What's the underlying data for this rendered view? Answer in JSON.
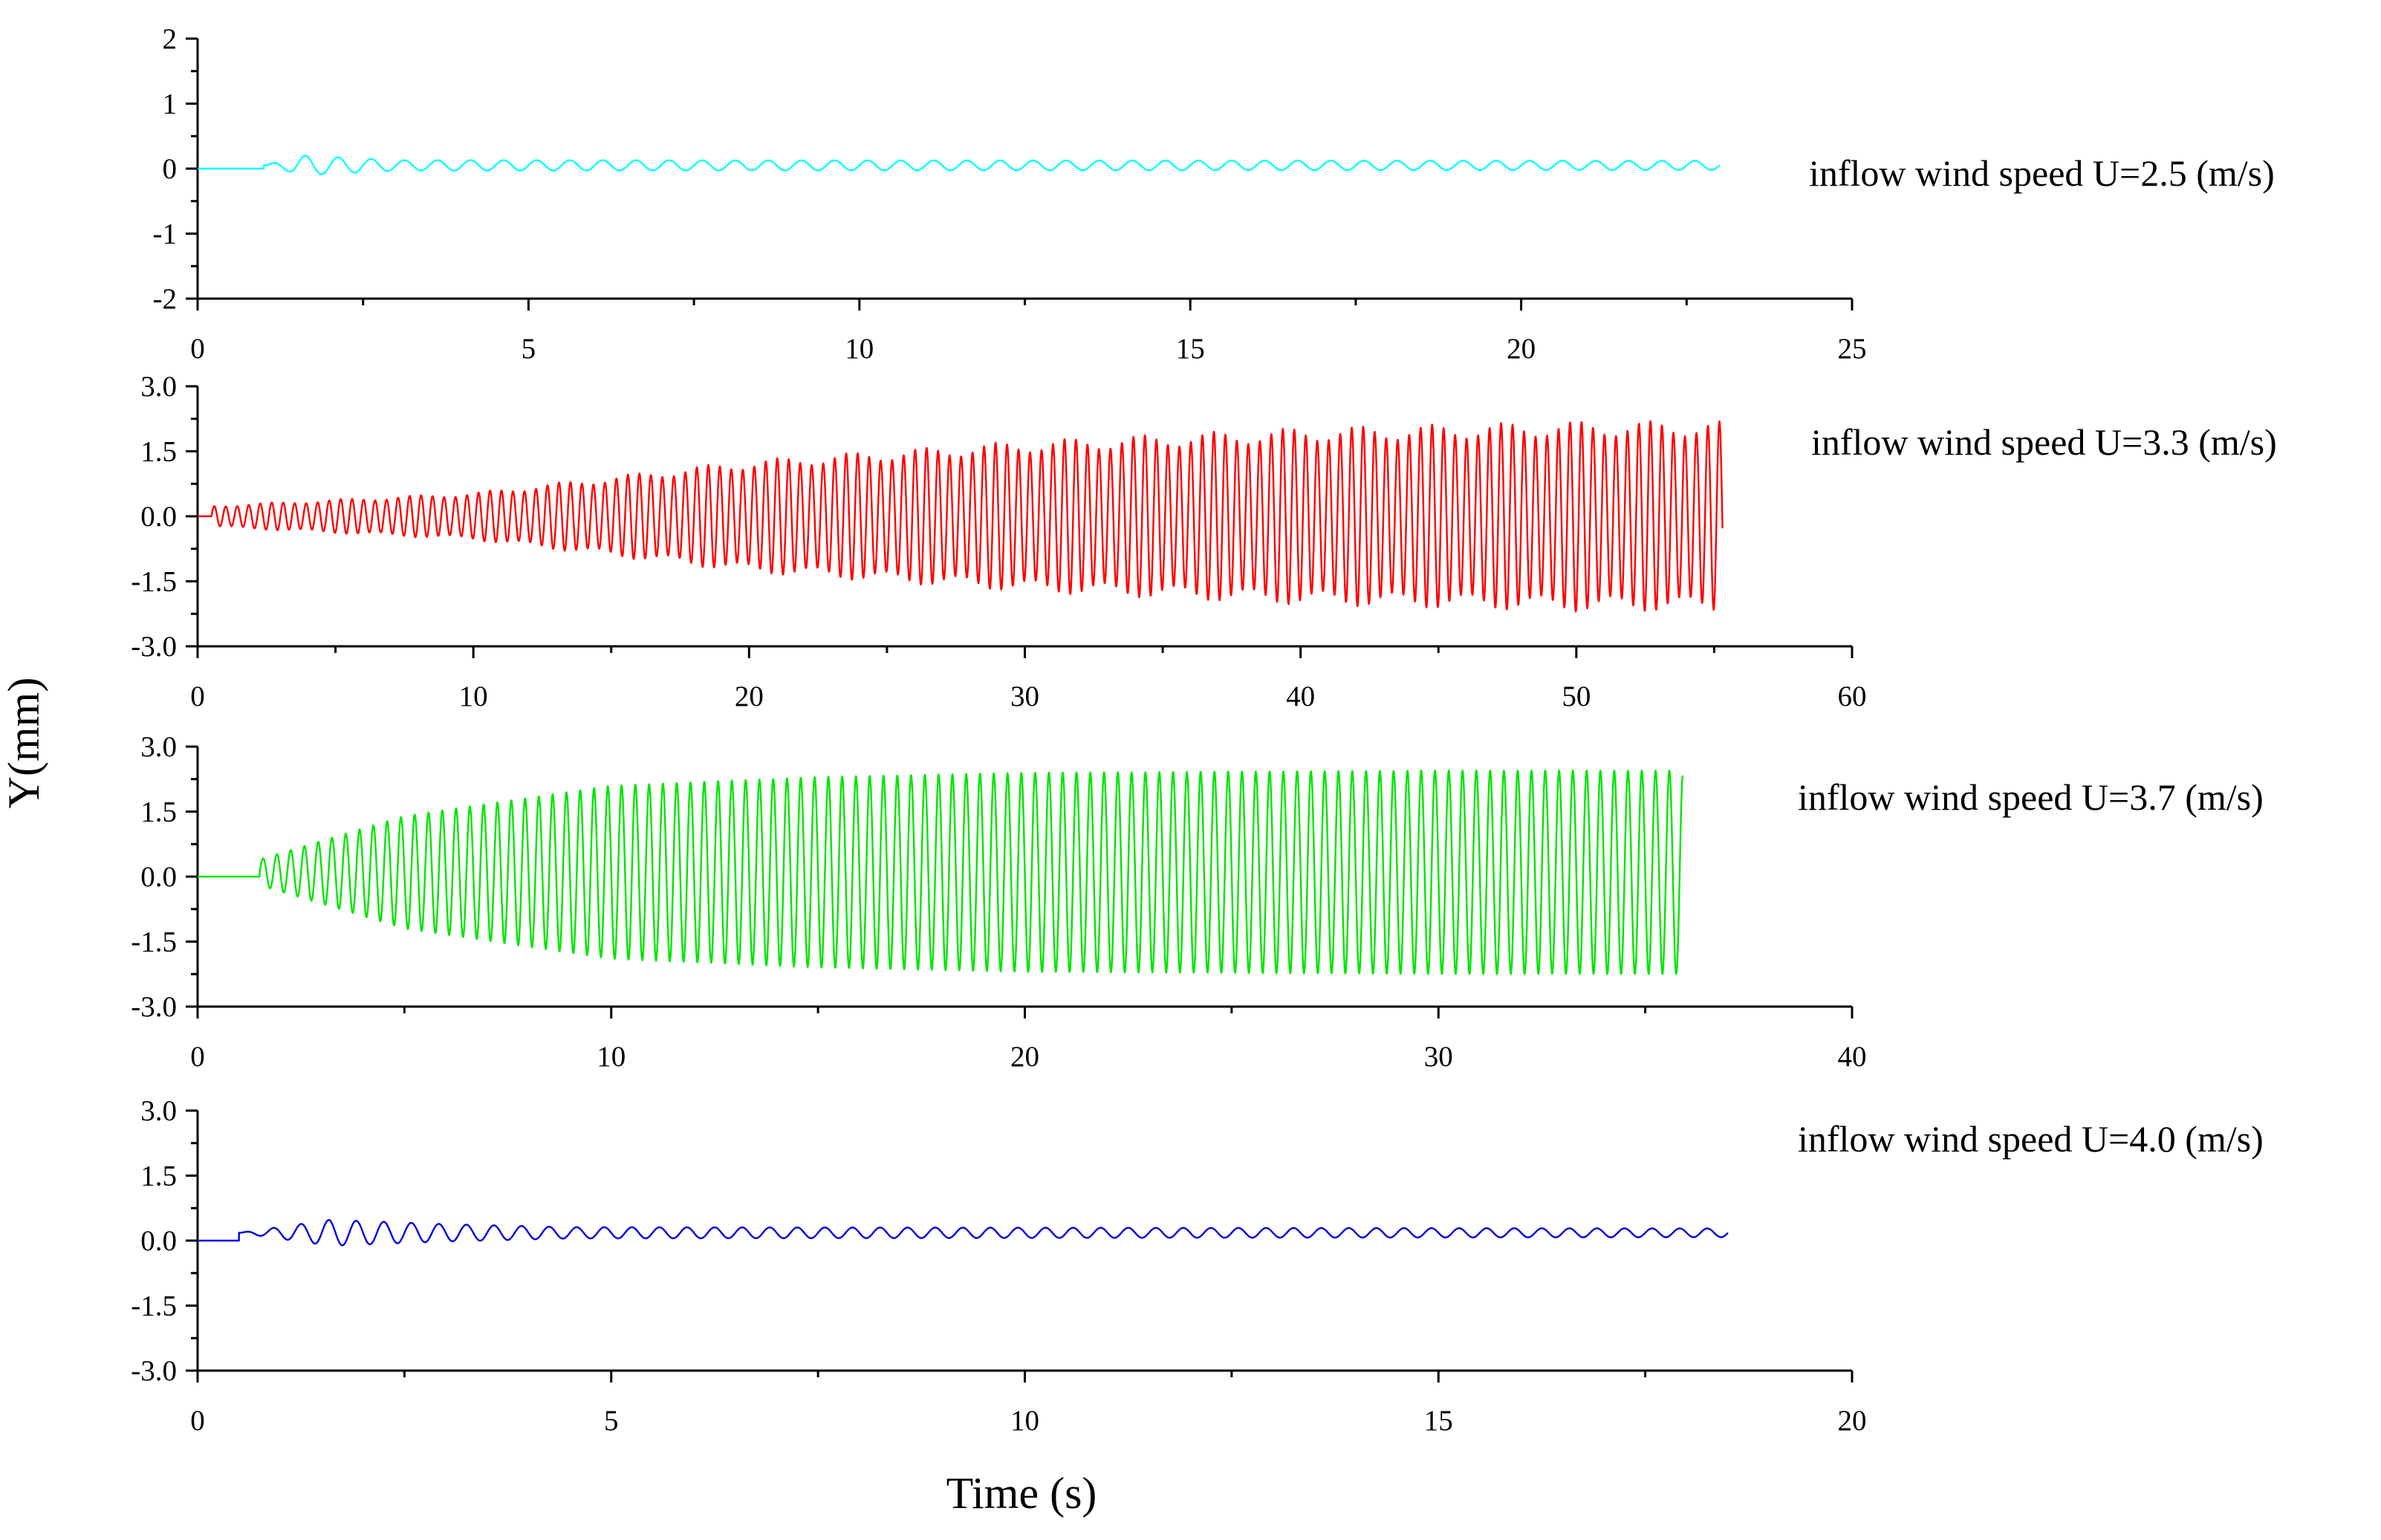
{
  "chart_data": {
    "type": "line",
    "shared_ylabel": "Y(mm)",
    "shared_xlabel": "Time (s)",
    "panels": [
      {
        "name": "panel-u25",
        "label": "inflow wind speed U=2.5 (m/s)",
        "color": "#00FFFF",
        "xlim": [
          0,
          25
        ],
        "ylim": [
          -2,
          2
        ],
        "x_ticks": [
          "0",
          "5",
          "10",
          "15",
          "20",
          "25"
        ],
        "y_ticks": [
          "2",
          "1",
          "0",
          "-1",
          "-2"
        ],
        "y_tick_values": [
          2,
          1,
          0,
          -1,
          -2
        ],
        "signal": {
          "t_start": 1.0,
          "t_end": 23.0,
          "freq_hz": 2.0,
          "envelope_t": [
            1.0,
            1.6,
            3.0,
            23.0
          ],
          "envelope_a": [
            0.0,
            0.15,
            0.08,
            0.07
          ],
          "offset": 0.05
        }
      },
      {
        "name": "panel-u33",
        "label": "inflow wind speed U=3.3 (m/s)",
        "color": "#FF0000",
        "xlim": [
          0,
          60
        ],
        "ylim": [
          -3,
          3
        ],
        "x_ticks": [
          "0",
          "10",
          "20",
          "30",
          "40",
          "50",
          "60"
        ],
        "y_ticks": [
          "3.0",
          "1.5",
          "0.0",
          "-1.5",
          "-3.0"
        ],
        "y_tick_values": [
          3,
          1.5,
          0,
          -1.5,
          -3
        ],
        "signal": {
          "t_start": 0.5,
          "t_end": 55.3,
          "freq_hz": 2.4,
          "envelope_t": [
            0.5,
            10,
            20,
            30,
            40,
            50,
            55.3
          ],
          "envelope_a": [
            0.25,
            0.55,
            1.3,
            1.75,
            2.05,
            2.2,
            2.2
          ],
          "offset": 0.0,
          "beat_hz": 0.38
        }
      },
      {
        "name": "panel-u37",
        "label": "inflow wind speed U=3.7 (m/s)",
        "color": "#00E600",
        "xlim": [
          0,
          40
        ],
        "ylim": [
          -3,
          3
        ],
        "x_ticks": [
          "0",
          "10",
          "20",
          "30",
          "40"
        ],
        "y_ticks": [
          "3.0",
          "1.5",
          "0.0",
          "-1.5",
          "-3.0"
        ],
        "y_tick_values": [
          3,
          1.5,
          0,
          -1.5,
          -3
        ],
        "signal": {
          "t_start": 1.5,
          "t_end": 35.9,
          "freq_hz": 3.0,
          "envelope_t": [
            1.5,
            5,
            10,
            15,
            20,
            30,
            35.9
          ],
          "envelope_a": [
            0.3,
            1.3,
            2.0,
            2.2,
            2.3,
            2.35,
            2.35
          ],
          "offset": 0.1
        }
      },
      {
        "name": "panel-u40",
        "label": "inflow wind speed U=4.0  (m/s)",
        "color": "#0000DD",
        "xlim": [
          0,
          20
        ],
        "ylim": [
          -3,
          3
        ],
        "x_ticks": [
          "0",
          "5",
          "10",
          "15",
          "20"
        ],
        "y_ticks": [
          "3.0",
          "1.5",
          "0.0",
          "-1.5",
          "-3.0"
        ],
        "y_tick_values": [
          3,
          1.5,
          0,
          -1.5,
          -3
        ],
        "signal": {
          "t_start": 0.5,
          "t_end": 18.5,
          "freq_hz": 3.0,
          "envelope_t": [
            0.5,
            1.6,
            3.0,
            4.5,
            18.5
          ],
          "envelope_a": [
            0.0,
            0.3,
            0.2,
            0.13,
            0.1
          ],
          "offset": 0.18
        }
      }
    ]
  }
}
